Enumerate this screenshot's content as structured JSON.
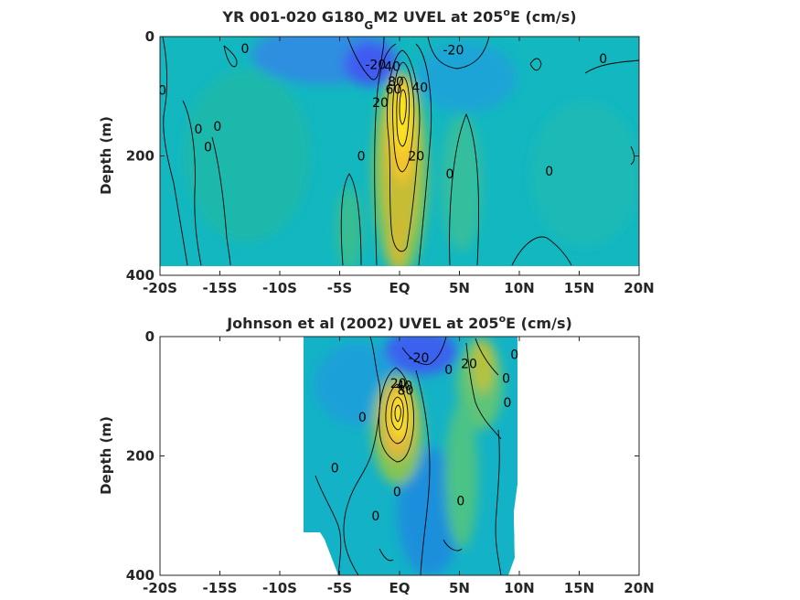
{
  "chart_data": [
    {
      "type": "heatmap",
      "title_parts": [
        "YR 001-020 G180",
        "G",
        "M2 UVEL at 205",
        "o",
        "E (cm/s)"
      ],
      "xlabel": "",
      "ylabel": "Depth (m)",
      "xlim": [
        -20,
        20
      ],
      "ylim": [
        400,
        0
      ],
      "x_ticks": [
        -20,
        -15,
        -10,
        -5,
        0,
        5,
        10,
        15,
        20
      ],
      "x_tick_labels": [
        "-20S",
        "-15S",
        "-10S",
        "-5S",
        "EQ",
        "5N",
        "10N",
        "15N",
        "20N"
      ],
      "y_ticks": [
        0,
        200,
        400
      ],
      "y_tick_labels": [
        "0",
        "200",
        "400"
      ],
      "data_extent": {
        "lat": [
          -20,
          20
        ],
        "depth": [
          0,
          385
        ]
      },
      "colormap": "parula",
      "features": [
        {
          "kind": "jet",
          "lat": 0.5,
          "depth": 140,
          "value": 100,
          "lat_sigma": 1.2,
          "depth_sigma": 75
        },
        {
          "kind": "jet",
          "lat": -0.5,
          "depth": 330,
          "value": 30,
          "lat_sigma": 1.0,
          "depth_sigma": 60
        },
        {
          "kind": "westward",
          "lat": -2.5,
          "depth": 25,
          "value": -40,
          "lat_sigma": 3.0,
          "depth_sigma": 30
        },
        {
          "kind": "westward",
          "lat": 4,
          "depth": 50,
          "value": -25,
          "lat_sigma": 2.5,
          "depth_sigma": 40
        }
      ],
      "contour_labels": [
        {
          "text": "0",
          "lat": -12.9,
          "depth": 20
        },
        {
          "text": "-20",
          "lat": 4.5,
          "depth": 22
        },
        {
          "text": "0",
          "lat": 17.0,
          "depth": 37
        },
        {
          "text": "-20",
          "lat": -2.0,
          "depth": 47
        },
        {
          "text": "40",
          "lat": -0.6,
          "depth": 50
        },
        {
          "text": "80",
          "lat": -0.3,
          "depth": 75
        },
        {
          "text": "60",
          "lat": -0.5,
          "depth": 88
        },
        {
          "text": "40",
          "lat": 1.7,
          "depth": 85
        },
        {
          "text": "0",
          "lat": -19.8,
          "depth": 90
        },
        {
          "text": "20",
          "lat": -1.6,
          "depth": 110
        },
        {
          "text": "0",
          "lat": -16.8,
          "depth": 155
        },
        {
          "text": "0",
          "lat": -15.2,
          "depth": 150
        },
        {
          "text": "0",
          "lat": -16.0,
          "depth": 185
        },
        {
          "text": "0",
          "lat": -3.2,
          "depth": 200
        },
        {
          "text": "20",
          "lat": 1.4,
          "depth": 200
        },
        {
          "text": "0",
          "lat": 4.2,
          "depth": 230
        },
        {
          "text": "0",
          "lat": 12.5,
          "depth": 225
        }
      ]
    },
    {
      "type": "heatmap",
      "title_parts": [
        "Johnson et al (2002) UVEL at 205",
        "o",
        "E (cm/s)"
      ],
      "xlabel": "",
      "ylabel": "Depth (m)",
      "xlim": [
        -20,
        20
      ],
      "ylim": [
        400,
        0
      ],
      "x_ticks": [
        -20,
        -15,
        -10,
        -5,
        0,
        5,
        10,
        15,
        20
      ],
      "x_tick_labels": [
        "-20S",
        "-15S",
        "-10S",
        "-5S",
        "EQ",
        "5N",
        "10N",
        "15N",
        "20N"
      ],
      "y_ticks": [
        0,
        200,
        400
      ],
      "y_tick_labels": [
        "0",
        "200",
        "400"
      ],
      "data_extent": {
        "lat": [
          -8,
          10
        ],
        "depth": [
          0,
          400
        ]
      },
      "colormap": "parula",
      "features": [
        {
          "kind": "jet",
          "lat": 0.2,
          "depth": 140,
          "value": 90,
          "lat_sigma": 1.3,
          "depth_sigma": 55
        },
        {
          "kind": "jet",
          "lat": 6.5,
          "depth": 50,
          "value": 30,
          "lat_sigma": 1.5,
          "depth_sigma": 60
        },
        {
          "kind": "westward",
          "lat": 1.5,
          "depth": 10,
          "value": -40,
          "lat_sigma": 2.0,
          "depth_sigma": 25
        },
        {
          "kind": "westward",
          "lat": 4.0,
          "depth": 200,
          "value": -15,
          "lat_sigma": 2.0,
          "depth_sigma": 120
        }
      ],
      "contour_labels": [
        {
          "text": "-20",
          "lat": 1.6,
          "depth": 35
        },
        {
          "text": "20",
          "lat": 5.8,
          "depth": 45
        },
        {
          "text": "0",
          "lat": 9.6,
          "depth": 30
        },
        {
          "text": "0",
          "lat": 4.1,
          "depth": 55
        },
        {
          "text": "0",
          "lat": 8.9,
          "depth": 70
        },
        {
          "text": "0",
          "lat": 9.0,
          "depth": 110
        },
        {
          "text": "20",
          "lat": -0.1,
          "depth": 78
        },
        {
          "text": "40",
          "lat": 0.4,
          "depth": 82
        },
        {
          "text": "80",
          "lat": 0.5,
          "depth": 90
        },
        {
          "text": "0",
          "lat": -3.1,
          "depth": 135
        },
        {
          "text": "0",
          "lat": -5.4,
          "depth": 220
        },
        {
          "text": "0",
          "lat": -0.2,
          "depth": 260
        },
        {
          "text": "0",
          "lat": 5.1,
          "depth": 275
        },
        {
          "text": "0",
          "lat": -2.0,
          "depth": 300
        }
      ]
    }
  ]
}
